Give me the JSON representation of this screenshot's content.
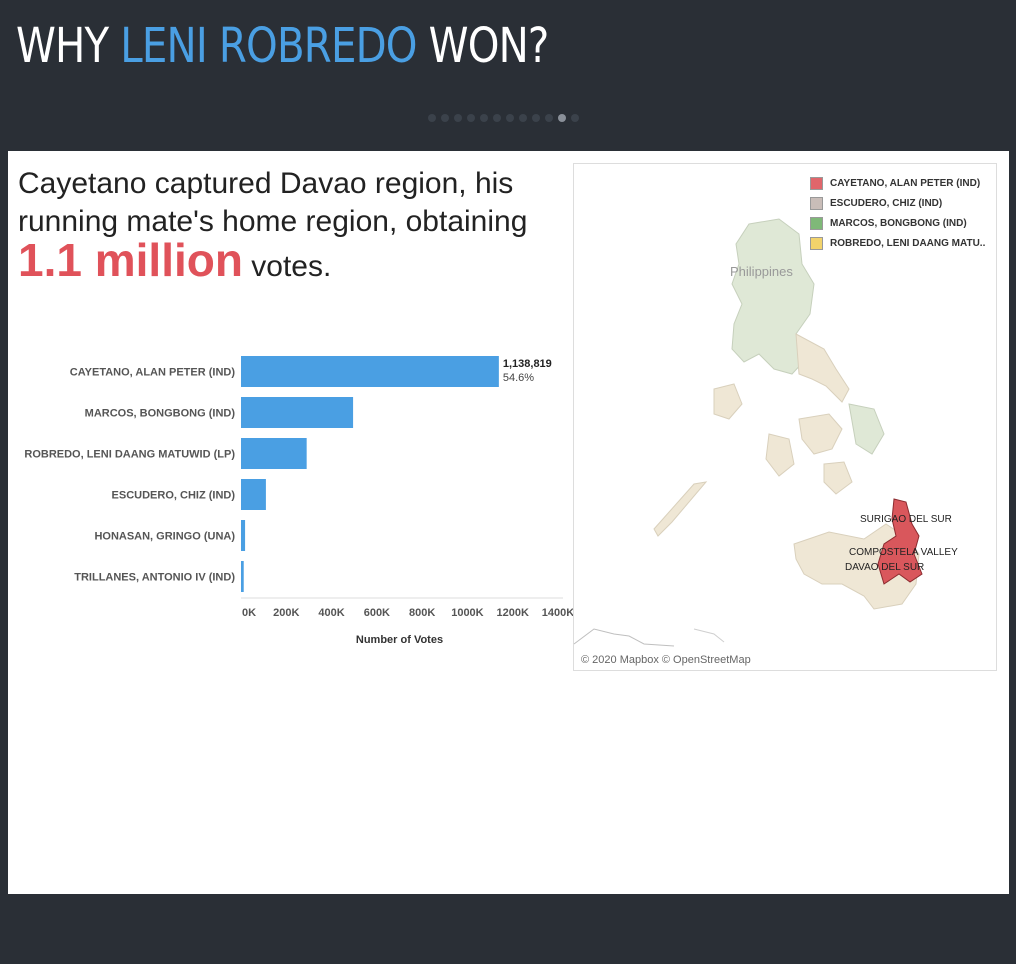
{
  "header": {
    "title_part1": "WHY ",
    "title_highlight": "LENI ROBREDO",
    "title_part2": " WON?"
  },
  "pagination": {
    "count": 12,
    "active_index": 10
  },
  "headline": {
    "text1": "Cayetano captured Davao region, his running mate's home region, obtaining ",
    "big": "1.1 million",
    "text2": " votes."
  },
  "chart_data": {
    "type": "bar",
    "orientation": "horizontal",
    "categories": [
      "CAYETANO, ALAN PETER (IND)",
      "MARCOS, BONGBONG (IND)",
      "ROBREDO, LENI DAANG MATUWID (LP)",
      "ESCUDERO, CHIZ (IND)",
      "HONASAN, GRINGO (UNA)",
      "TRILLANES, ANTONIO IV (IND)"
    ],
    "values": [
      1138819,
      495000,
      290000,
      110000,
      18000,
      12000
    ],
    "annotation": {
      "index": 0,
      "value_label": "1,138,819",
      "percent_label": "54.6%"
    },
    "xlabel": "Number of Votes",
    "xlim": [
      0,
      1400000
    ],
    "xticks": [
      0,
      200000,
      400000,
      600000,
      800000,
      1000000,
      1200000,
      1400000
    ],
    "xtick_labels": [
      "0K",
      "200K",
      "400K",
      "600K",
      "800K",
      "1000K",
      "1200K",
      "1400K"
    ],
    "bar_color": "#4a9fe3",
    "grid": false
  },
  "map": {
    "country_label": "Philippines",
    "credit": "© 2020 Mapbox © OpenStreetMap",
    "legend": [
      {
        "label": "CAYETANO, ALAN PETER (IND)",
        "color": "#e0666b"
      },
      {
        "label": "ESCUDERO, CHIZ (IND)",
        "color": "#c9bdb8"
      },
      {
        "label": "MARCOS, BONGBONG (IND)",
        "color": "#7fb878"
      },
      {
        "label": "ROBREDO, LENI DAANG MATU..",
        "color": "#f2d36b"
      }
    ],
    "region_labels": [
      "SURIGAO DEL SUR",
      "COMPOSTELA VALLEY",
      "DAVAO DEL SUR"
    ]
  }
}
